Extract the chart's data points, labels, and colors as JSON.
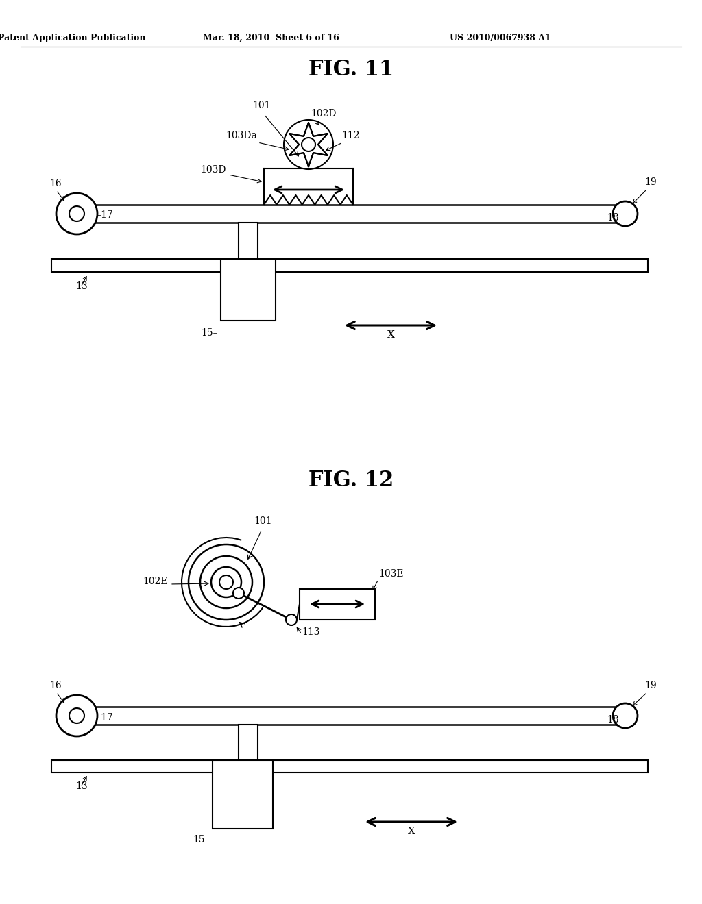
{
  "bg_color": "#ffffff",
  "line_color": "#000000",
  "fig_width": 10.24,
  "fig_height": 13.2,
  "header_text": "Patent Application Publication",
  "header_date": "Mar. 18, 2010  Sheet 6 of 16",
  "header_patent": "US 2010/0067938 A1",
  "fig11_title": "FIG. 11",
  "fig12_title": "FIG. 12"
}
